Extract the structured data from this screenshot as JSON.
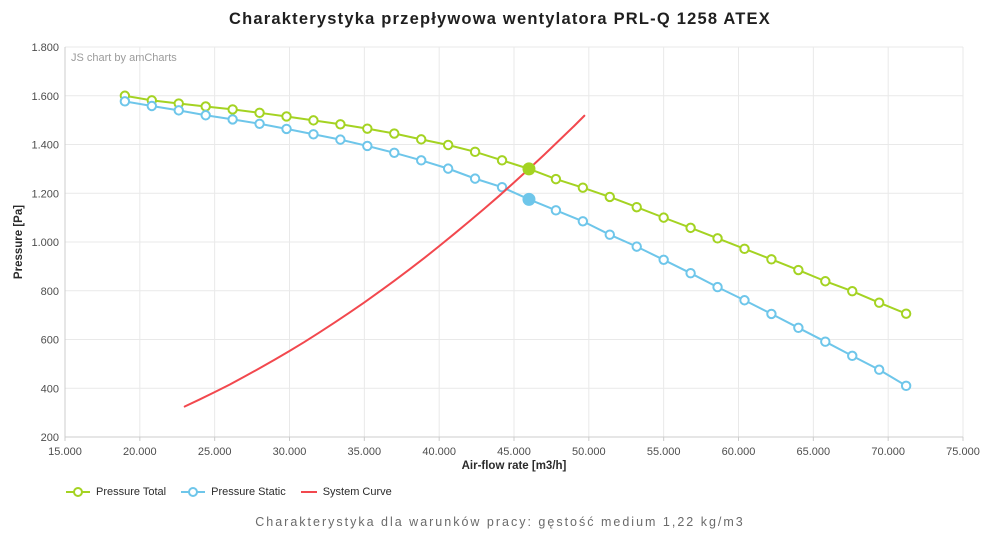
{
  "title": "Charakterystyka przepływowa wentylatora PRL-Q 1258 ATEX",
  "watermark": "JS chart by amCharts",
  "subtitle": "Charakterystyka dla warunków pracy: gęstość medium 1,22 kg/m3",
  "colors": {
    "grid": "#e9e9e9",
    "axis": "#cccccc",
    "tick_text": "#4d4d4d",
    "axis_title_text": "#2b2b2b"
  },
  "chart_data": {
    "type": "line",
    "title": "Charakterystyka przepływowa wentylatora PRL-Q 1258 ATEX",
    "xlabel": "Air-flow rate [m3/h]",
    "ylabel": "Pressure [Pa]",
    "xlim": [
      15000,
      75000
    ],
    "ylim": [
      200,
      1800
    ],
    "grid": true,
    "legend_position": "bottom-left",
    "x_ticks": [
      15000,
      20000,
      25000,
      30000,
      35000,
      40000,
      45000,
      50000,
      55000,
      60000,
      65000,
      70000,
      75000
    ],
    "x_tick_labels": [
      "15.000",
      "20.000",
      "25.000",
      "30.000",
      "35.000",
      "40.000",
      "45.000",
      "50.000",
      "55.000",
      "60.000",
      "65.000",
      "70.000",
      "75.000"
    ],
    "y_ticks": [
      200,
      400,
      600,
      800,
      1000,
      1200,
      1400,
      1600,
      1800
    ],
    "y_tick_labels": [
      "200",
      "400",
      "600",
      "800",
      "1.000",
      "1.200",
      "1.400",
      "1.600",
      "1.800"
    ],
    "x": [
      19000,
      20800,
      22600,
      24400,
      26200,
      28000,
      29800,
      31600,
      33400,
      35200,
      37000,
      38800,
      40600,
      42400,
      44200,
      46000,
      47800,
      49600,
      51400,
      53200,
      55000,
      56800,
      58600,
      60400,
      62200,
      64000,
      65800,
      67600,
      69400,
      71200
    ],
    "series": [
      {
        "name": "Pressure Total",
        "color": "#a4d322",
        "values": [
          1600,
          1581,
          1568,
          1556,
          1544,
          1530,
          1515,
          1499,
          1483,
          1465,
          1445,
          1421,
          1398,
          1370,
          1335,
          1300,
          1258,
          1223,
          1185,
          1143,
          1100,
          1058,
          1015,
          972,
          929,
          885,
          839,
          798,
          751,
          706
        ]
      },
      {
        "name": "Pressure Static",
        "color": "#6ec6ea",
        "values": [
          1577,
          1558,
          1540,
          1520,
          1503,
          1485,
          1464,
          1442,
          1420,
          1394,
          1366,
          1335,
          1301,
          1260,
          1225,
          1175,
          1130,
          1085,
          1030,
          981,
          927,
          872,
          815,
          761,
          705,
          648,
          591,
          533,
          476,
          410
        ]
      }
    ],
    "system_curve": {
      "name": "System Curve",
      "color": "#f2484e",
      "x": [
        23000,
        24000,
        25000,
        26000,
        27000,
        28000,
        29000,
        30000,
        31000,
        32000,
        33000,
        34000,
        35000,
        36000,
        37000,
        38000,
        39000,
        40000,
        41000,
        42000,
        43000,
        44000,
        45000,
        46000,
        47000,
        48000,
        49000,
        49700
      ],
      "values": [
        325,
        354,
        384,
        415,
        448,
        482,
        517,
        553,
        590,
        629,
        669,
        710,
        752,
        796,
        841,
        887,
        934,
        983,
        1033,
        1084,
        1136,
        1189,
        1244,
        1300,
        1357,
        1416,
        1475,
        1518
      ]
    },
    "operating_points": [
      {
        "series": "Pressure Total",
        "x": 46000,
        "y": 1300
      },
      {
        "series": "Pressure Static",
        "x": 46000,
        "y": 1175
      }
    ]
  }
}
